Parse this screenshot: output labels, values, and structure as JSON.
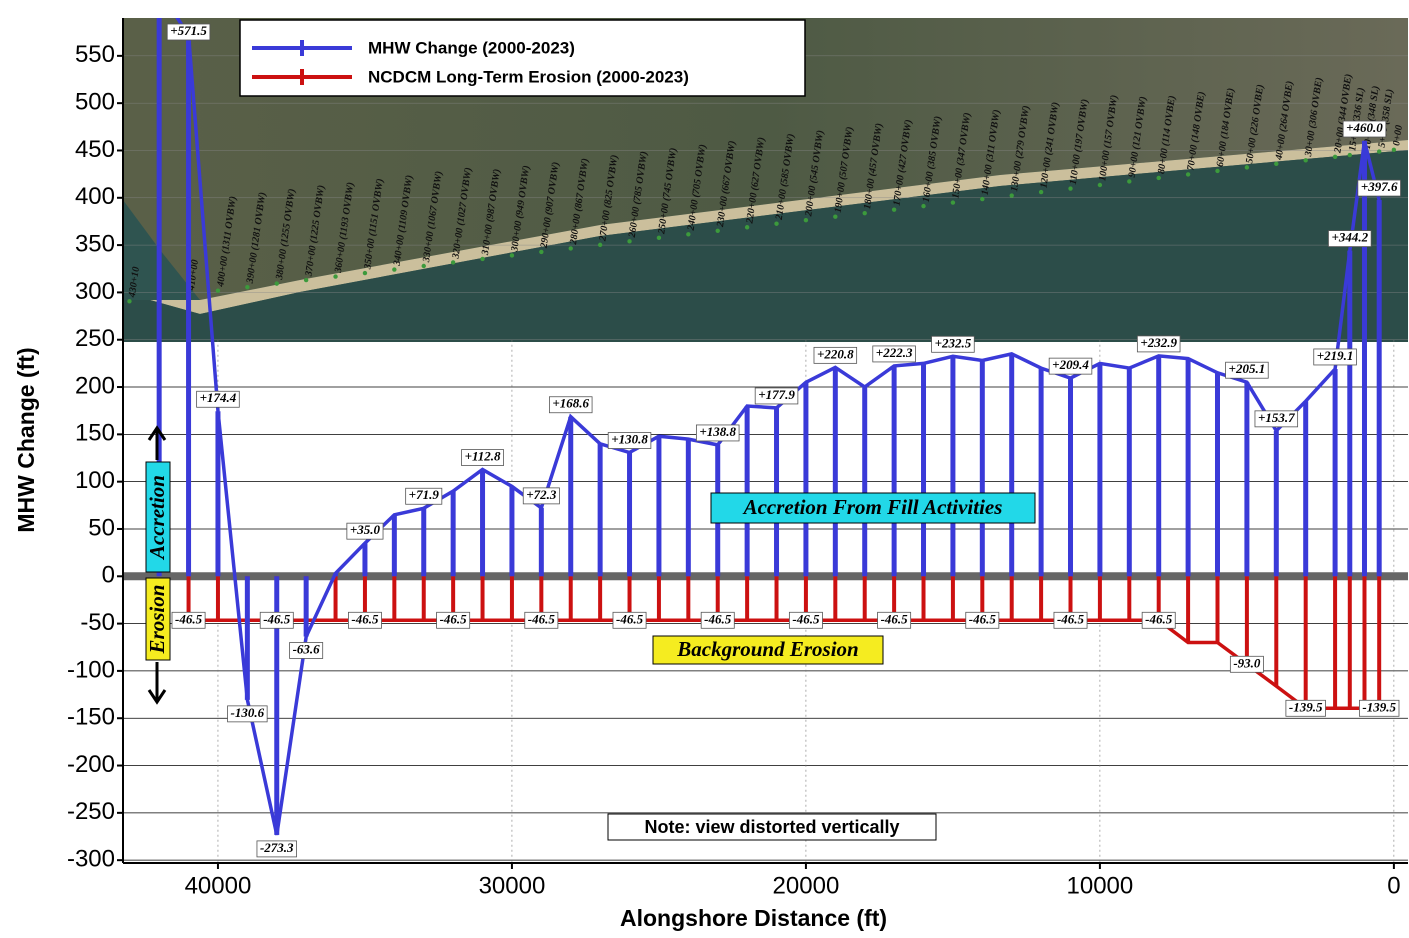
{
  "chart_data": {
    "type": "line",
    "x_label": "Alongshore Distance (ft)",
    "y_label": "MHW Change (ft)",
    "x": [
      42000,
      41000,
      40000,
      39000,
      38000,
      37000,
      36000,
      35000,
      34000,
      33000,
      32000,
      31000,
      30000,
      29000,
      28000,
      27000,
      26000,
      25000,
      24000,
      23000,
      22000,
      21000,
      20000,
      19000,
      18000,
      17000,
      16000,
      15000,
      14000,
      13000,
      12000,
      11000,
      10000,
      9000,
      8000,
      7000,
      6000,
      5000,
      4000,
      3000,
      2000,
      1500,
      1000,
      500
    ],
    "series": [
      {
        "name": "MHW Change (2000-2023)",
        "color": "#3a3ad8",
        "values": [
          620,
          571.5,
          174.4,
          -130.6,
          -273.3,
          -63.6,
          3,
          35.0,
          65,
          71.9,
          90,
          112.8,
          95,
          72.3,
          168.6,
          140,
          130.8,
          148,
          145,
          138.8,
          180,
          177.9,
          205,
          220.8,
          200,
          222.3,
          225,
          232.5,
          228,
          235,
          220,
          209.4,
          225,
          220,
          232.9,
          230,
          215,
          205.1,
          153.7,
          185,
          219.1,
          344.2,
          460.0,
          397.6
        ],
        "value_labels": [
          null,
          "+571.5",
          "+174.4",
          "-130.6",
          "-273.3",
          "-63.6",
          null,
          "+35.0",
          null,
          "+71.9",
          null,
          "+112.8",
          null,
          "+72.3",
          "+168.6",
          null,
          "+130.8",
          null,
          null,
          "+138.8",
          null,
          "+177.9",
          null,
          "+220.8",
          null,
          "+222.3",
          null,
          "+232.5",
          null,
          null,
          null,
          "+209.4",
          null,
          null,
          "+232.9",
          null,
          null,
          "+205.1",
          "+153.7",
          null,
          "+219.1",
          "+344.2",
          "+460.0",
          "+397.6"
        ]
      },
      {
        "name": "NCDCM Long-Term Erosion (2000-2023)",
        "color": "#cc1111",
        "values": [
          null,
          -46.5,
          -46.5,
          -46.5,
          -46.5,
          -46.5,
          -46.5,
          -46.5,
          -46.5,
          -46.5,
          -46.5,
          -46.5,
          -46.5,
          -46.5,
          -46.5,
          -46.5,
          -46.5,
          -46.5,
          -46.5,
          -46.5,
          -46.5,
          -46.5,
          -46.5,
          -46.5,
          -46.5,
          -46.5,
          -46.5,
          -46.5,
          -46.5,
          -46.5,
          -46.5,
          -46.5,
          -46.5,
          -46.5,
          -46.5,
          -70,
          -70,
          -93.0,
          -116,
          -139.5,
          -139.5,
          -139.5,
          -139.5,
          -139.5
        ],
        "value_labels": [
          null,
          "-46.5",
          null,
          null,
          "-46.5",
          null,
          null,
          "-46.5",
          null,
          null,
          "-46.5",
          null,
          null,
          "-46.5",
          null,
          null,
          "-46.5",
          null,
          null,
          "-46.5",
          null,
          null,
          "-46.5",
          null,
          null,
          "-46.5",
          null,
          null,
          "-46.5",
          null,
          null,
          "-46.5",
          null,
          null,
          "-46.5",
          null,
          null,
          "-93.0",
          null,
          "-139.5",
          null,
          null,
          null,
          "-139.5"
        ]
      }
    ],
    "xlim": [
      43230,
      -480
    ],
    "xticks": [
      40000,
      30000,
      20000,
      10000,
      0
    ],
    "ylim": [
      -303,
      590
    ],
    "yticks": [
      -300,
      -250,
      -200,
      -150,
      -100,
      -50,
      0,
      50,
      100,
      150,
      200,
      250,
      300,
      350,
      400,
      450,
      500,
      550
    ],
    "grid": true,
    "legend": "upper left",
    "annotations": {
      "fill": "Accretion From Fill Activities",
      "background": "Background Erosion",
      "note": "Note: view distorted vertically",
      "accretion": "Accretion",
      "erosion": "Erosion"
    },
    "image_labels": [
      "430+10",
      "410+00",
      "400+00 (1311 OVBW)",
      "390+00 (1281 OVBW)",
      "380+00 (1255 OVBW)",
      "370+00 (1225 OVBW)",
      "360+00 (1193 OVBW)",
      "350+00 (1151 OVBW)",
      "340+00 (1109 OVBW)",
      "330+00 (1067 OVBW)",
      "320+00 (1027 OVBW)",
      "310+00 (987 OVBW)",
      "300+00 (949 OVBW)",
      "290+00 (907 OVBW)",
      "280+00 (867 OVBW)",
      "270+00 (825 OVBW)",
      "260+00 (785 OVBW)",
      "250+00 (745 OVBW)",
      "240+00 (705 OVBW)",
      "230+00 (667 OVBW)",
      "220+00 (627 OVBW)",
      "210+00 (585 OVBW)",
      "200+00 (545 OVBW)",
      "190+00 (507 OVBW)",
      "180+00 (457 OVBW)",
      "170+00 (427 OVBW)",
      "160+00 (385 OVBW)",
      "150+00 (347 OVBW)",
      "140+00 (311 OVBW)",
      "130+00 (279 OVBW)",
      "120+00 (241 OVBW)",
      "110+00 (197 OVBW)",
      "100+00 (157 OVBW)",
      "90+00 (121 OVBW)",
      "80+00 (114 OVBE)",
      "70+00 (148 OVBE)",
      "60+00 (184 OVBE)",
      "50+00 (226 OVBE)",
      "40+00 (264 OVBE)",
      "30+00 (306 OVBE)",
      "20+00 (344 OVBE)",
      "15+00 (336 SL)",
      "10+00 (348 SL)",
      "5+00 (358 SL)",
      "0+00"
    ]
  }
}
